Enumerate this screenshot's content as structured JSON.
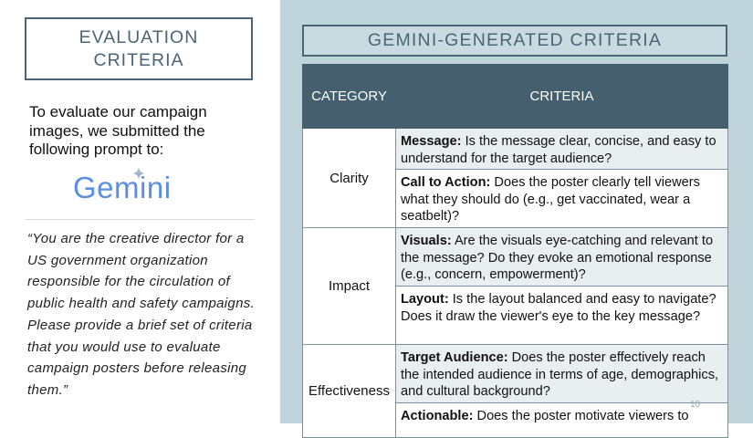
{
  "left": {
    "title_line1": "EVALUATION",
    "title_line2": "CRITERIA",
    "intro": "To evaluate our campaign images, we submitted the following prompt to:",
    "logo_text": "Gemini",
    "quote": "“You are the creative director for a US government organization responsible for the circulation of public health and safety campaigns. Please provide a brief set of criteria that you would use to evaluate campaign posters before releasing them.”"
  },
  "right": {
    "title": "GEMINI-GENERATED CRITERIA",
    "table": {
      "headers": [
        "CATEGORY",
        "CRITERIA"
      ],
      "groups": [
        {
          "category": "Clarity",
          "rows": [
            {
              "label": "Message:",
              "text": " Is the message clear, concise, and easy to understand for the target audience?"
            },
            {
              "label": "Call to Action:",
              "text": " Does the poster clearly tell viewers what they should do (e.g., get vaccinated, wear a seatbelt)?"
            }
          ]
        },
        {
          "category": "Impact",
          "rows": [
            {
              "label": "Visuals:",
              "text": " Are the visuals eye-catching and relevant to the message? Do they evoke an emotional response (e.g., concern, empowerment)?"
            },
            {
              "label": "Layout:",
              "text": " Is the layout balanced and easy to navigate? Does it draw the viewer's eye to the key message?"
            }
          ]
        },
        {
          "category": "Effectiveness",
          "rows": [
            {
              "label": "Target Audience:",
              "text": " Does the poster effectively reach the intended audience in terms of age, demographics, and cultural background?"
            },
            {
              "label": "Actionable:",
              "text": " Does the poster motivate viewers to"
            }
          ]
        }
      ]
    }
  },
  "page_number": "10",
  "colors": {
    "accent": "#4a6577",
    "header_bg": "#455f6e",
    "panel_bg": "#bfd3da",
    "logo_blue": "#5a8fe3"
  },
  "icons": {
    "logo_sparkle": "sparkle-icon"
  }
}
